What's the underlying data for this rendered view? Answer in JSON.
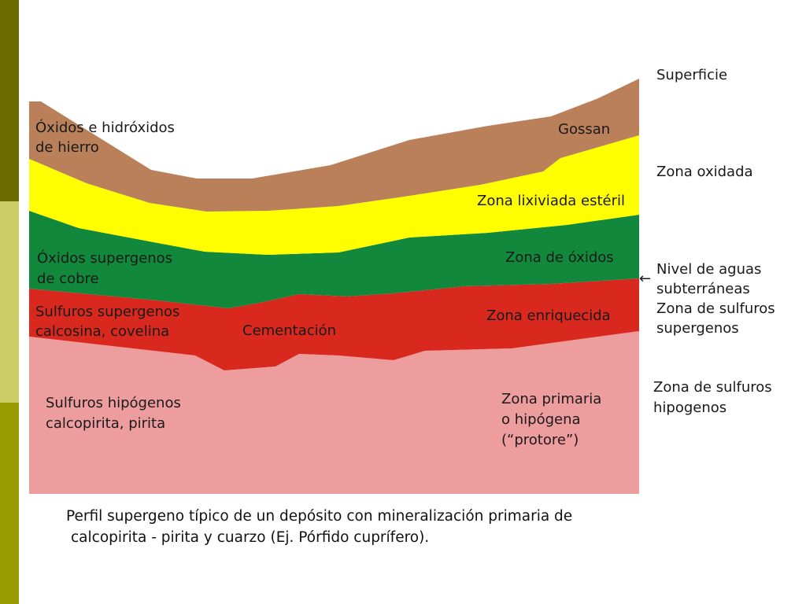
{
  "colors": {
    "sidebar_dark": "#6b6b00",
    "sidebar_light": "#cccc66",
    "sidebar_mid": "#999900",
    "gossan": "#b9805a",
    "leached": "#ffff00",
    "oxides": "#11883c",
    "enriched": "#d9291f",
    "primary": "#ee9d9f"
  },
  "layers": {
    "gossan_left": [
      "Óxidos e hidróxidos",
      "de hierro"
    ],
    "gossan_right": "Gossan",
    "leached_right": "Zona lixiviada estéril",
    "oxides_left": [
      "Óxidos supergenos",
      "de cobre"
    ],
    "oxides_right": "Zona de óxidos",
    "enriched_left": [
      "Sulfuros supergenos",
      "calcosina, covelina"
    ],
    "enriched_center": "Cementación",
    "enriched_right": "Zona enriquecida",
    "primary_left": [
      "Sulfuros hipógenos",
      "calcopirita, pirita"
    ],
    "primary_right": [
      "Zona primaria",
      "o hipógena",
      "(“protore”)"
    ]
  },
  "side_labels": {
    "surface": "Superficie",
    "oxidized": "Zona oxidada",
    "water_table": [
      "Nivel de aguas",
      "subterráneas"
    ],
    "water_arrow": "←",
    "supergene": [
      "Zona de sulfuros",
      "supergenos"
    ],
    "hypogene": [
      "Zona de sulfuros",
      "hipogenos"
    ]
  },
  "caption": [
    "Perfil supergeno típico de un depósito con mineralización primaria de",
    "calcopirita - pirita y cuarzo (Ej. Pórfido cuprífero)."
  ]
}
